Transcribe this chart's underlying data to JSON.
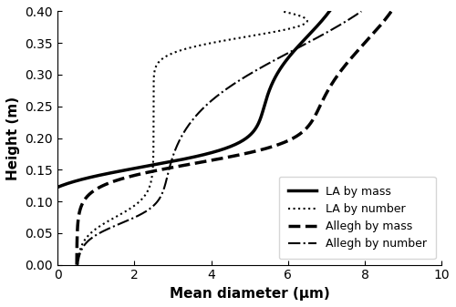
{
  "title": "",
  "xlabel": "Mean diameter (μm)",
  "ylabel": "Height (m)",
  "xlim": [
    0,
    10
  ],
  "ylim": [
    0.0,
    0.4
  ],
  "xticks": [
    0,
    2,
    4,
    6,
    8,
    10
  ],
  "yticks": [
    0.0,
    0.05,
    0.1,
    0.15,
    0.2,
    0.25,
    0.3,
    0.35,
    0.4
  ],
  "legend": [
    {
      "label": "LA by mass",
      "linestyle": "solid",
      "linewidth": 2.5
    },
    {
      "label": "LA by number",
      "linestyle": "dotted",
      "linewidth": 2.0
    },
    {
      "label": "Allegh by mass",
      "linestyle": "dashed",
      "linewidth": 2.5
    },
    {
      "label": "Allegh by number",
      "linestyle": "dashdot",
      "linewidth": 2.0
    }
  ],
  "figsize": [
    5.0,
    3.37
  ],
  "dpi": 100
}
